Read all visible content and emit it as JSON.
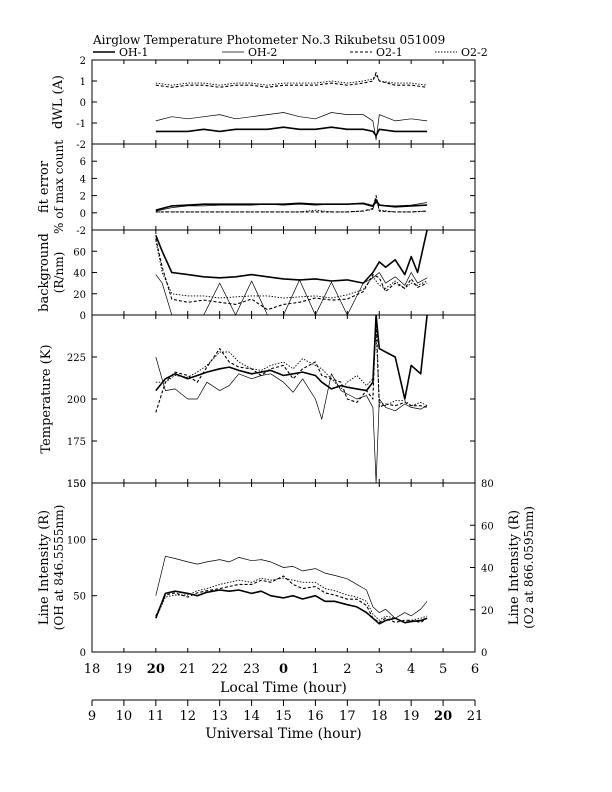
{
  "title": "Airglow Temperature Photometer No.3   Rikubetsu   051009",
  "legend": {
    "items": [
      {
        "label": "OH-1",
        "style": "solid-thick"
      },
      {
        "label": "OH-2",
        "style": "solid-thin"
      },
      {
        "label": "O2-1",
        "style": "dash"
      },
      {
        "label": "O2-2",
        "style": "dot"
      }
    ]
  },
  "x_axis_local": {
    "label": "Local Time (hour)",
    "ticks": [
      "18",
      "19",
      "20",
      "21",
      "22",
      "23",
      "0",
      "1",
      "2",
      "3",
      "4",
      "5",
      "6"
    ],
    "bold": [
      "20",
      "0"
    ]
  },
  "x_axis_ut": {
    "label": "Universal Time (hour)",
    "ticks": [
      "9",
      "10",
      "11",
      "12",
      "13",
      "14",
      "15",
      "16",
      "17",
      "18",
      "19",
      "20",
      "21"
    ],
    "bold": [
      "20"
    ]
  },
  "chart_data": [
    {
      "type": "line",
      "panel": "dWL",
      "ylabel": "dWL (A)",
      "ylim": [
        -2,
        2
      ],
      "yticks": [
        "2",
        "1",
        "0",
        "-1",
        "-2"
      ],
      "x_hours_ut": [
        11.0,
        11.5,
        12.0,
        12.5,
        13.0,
        13.5,
        14.0,
        14.5,
        15.0,
        15.5,
        16.0,
        16.5,
        17.0,
        17.5,
        17.8,
        17.9,
        18.0,
        18.5,
        19.0,
        19.5
      ],
      "series": [
        {
          "name": "OH-1",
          "values": [
            -1.4,
            -1.4,
            -1.4,
            -1.3,
            -1.4,
            -1.3,
            -1.3,
            -1.3,
            -1.2,
            -1.3,
            -1.3,
            -1.2,
            -1.3,
            -1.3,
            -1.4,
            -1.6,
            -1.3,
            -1.4,
            -1.4,
            -1.4
          ]
        },
        {
          "name": "OH-2",
          "values": [
            -0.9,
            -0.7,
            -0.8,
            -0.7,
            -0.6,
            -0.8,
            -0.7,
            -0.6,
            -0.5,
            -0.7,
            -0.8,
            -0.5,
            -0.6,
            -0.6,
            -0.9,
            -1.8,
            -0.6,
            -0.9,
            -0.8,
            -0.9
          ]
        },
        {
          "name": "O2-1",
          "values": [
            0.8,
            0.7,
            0.8,
            0.8,
            0.7,
            0.8,
            0.8,
            0.7,
            0.8,
            0.8,
            0.8,
            0.9,
            0.8,
            0.9,
            1.0,
            1.4,
            1.0,
            0.8,
            0.8,
            0.7
          ]
        },
        {
          "name": "O2-2",
          "values": [
            0.9,
            0.8,
            0.9,
            0.9,
            0.8,
            0.9,
            0.9,
            0.8,
            0.9,
            0.9,
            0.9,
            1.0,
            0.9,
            1.0,
            1.1,
            1.3,
            1.0,
            0.9,
            0.9,
            0.8
          ]
        }
      ]
    },
    {
      "type": "line",
      "panel": "fit-error",
      "ylabel": "fit error",
      "ylabel2": "% of max count",
      "ylim": [
        -2,
        8
      ],
      "yticks": [
        "6",
        "4",
        "2",
        "0",
        "-2"
      ],
      "x_hours_ut": [
        11.0,
        11.5,
        12.0,
        12.5,
        13.0,
        13.5,
        14.0,
        14.5,
        15.0,
        15.5,
        16.0,
        16.5,
        17.0,
        17.5,
        17.8,
        17.9,
        18.0,
        18.5,
        19.0,
        19.5
      ],
      "series": [
        {
          "name": "OH-1",
          "values": [
            0.3,
            0.8,
            0.9,
            1.0,
            1.0,
            1.0,
            1.0,
            1.0,
            1.0,
            1.1,
            1.0,
            1.0,
            1.0,
            1.1,
            0.8,
            1.5,
            0.9,
            0.7,
            0.8,
            0.9
          ]
        },
        {
          "name": "OH-2",
          "values": [
            0.2,
            0.6,
            0.8,
            0.8,
            0.9,
            0.9,
            0.9,
            1.0,
            0.9,
            1.0,
            0.9,
            1.0,
            1.0,
            1.0,
            0.7,
            1.2,
            0.9,
            0.8,
            0.9,
            1.2
          ]
        },
        {
          "name": "O2-1",
          "values": [
            0.1,
            0.1,
            0.1,
            0.1,
            0.1,
            0.1,
            0.1,
            0.1,
            0.1,
            0.1,
            0.1,
            0.1,
            0.1,
            0.2,
            0.5,
            2.0,
            0.2,
            0.1,
            0.1,
            0.2
          ]
        },
        {
          "name": "O2-2",
          "values": [
            0.1,
            0.1,
            0.1,
            0.1,
            0.1,
            0.1,
            0.1,
            0.1,
            0.1,
            0.1,
            0.3,
            0.1,
            0.1,
            0.2,
            0.4,
            1.6,
            0.3,
            0.1,
            0.1,
            0.2
          ]
        }
      ]
    },
    {
      "type": "line",
      "panel": "background",
      "ylabel": "background",
      "ylabel2": "(R/nm)",
      "ylim": [
        0,
        80
      ],
      "yticks": [
        "60",
        "40",
        "20",
        "0"
      ],
      "x_hours_ut": [
        11.0,
        11.2,
        11.5,
        12.0,
        12.5,
        13.0,
        13.5,
        14.0,
        14.5,
        15.0,
        15.5,
        16.0,
        16.5,
        17.0,
        17.5,
        17.8,
        18.0,
        18.2,
        18.5,
        18.8,
        19.0,
        19.2,
        19.5
      ],
      "series": [
        {
          "name": "OH-1",
          "values": [
            75,
            60,
            40,
            38,
            36,
            35,
            36,
            38,
            36,
            34,
            33,
            34,
            32,
            33,
            30,
            40,
            50,
            45,
            52,
            38,
            55,
            40,
            80
          ]
        },
        {
          "name": "OH-2",
          "values": [
            38,
            30,
            0,
            0,
            0,
            30,
            0,
            32,
            0,
            0,
            33,
            0,
            31,
            0,
            30,
            35,
            40,
            30,
            36,
            28,
            40,
            30,
            35
          ]
        },
        {
          "name": "O2-1",
          "values": [
            72,
            45,
            15,
            12,
            14,
            12,
            10,
            15,
            5,
            10,
            12,
            16,
            14,
            15,
            22,
            38,
            35,
            22,
            30,
            25,
            34,
            26,
            30
          ]
        },
        {
          "name": "O2-2",
          "values": [
            70,
            40,
            20,
            18,
            18,
            16,
            17,
            18,
            18,
            16,
            17,
            18,
            16,
            19,
            24,
            36,
            28,
            25,
            32,
            25,
            30,
            28,
            32
          ]
        }
      ]
    },
    {
      "type": "line",
      "panel": "temperature",
      "ylabel": "Temperature (K)",
      "ylim": [
        150,
        250
      ],
      "yticks": [
        "225",
        "200",
        "175",
        "150"
      ],
      "x_hours_ut": [
        11.0,
        11.3,
        11.6,
        12.0,
        12.3,
        12.6,
        13.0,
        13.3,
        13.6,
        14.0,
        14.3,
        14.6,
        15.0,
        15.3,
        15.6,
        16.0,
        16.2,
        16.5,
        16.8,
        17.0,
        17.3,
        17.6,
        17.8,
        17.9,
        18.0,
        18.2,
        18.5,
        18.8,
        19.0,
        19.3,
        19.5
      ],
      "series": [
        {
          "name": "OH-1",
          "values": [
            205,
            212,
            215,
            212,
            214,
            216,
            218,
            219,
            217,
            215,
            216,
            217,
            214,
            215,
            216,
            214,
            210,
            206,
            208,
            207,
            206,
            205,
            210,
            250,
            230,
            228,
            225,
            200,
            220,
            215,
            250
          ]
        },
        {
          "name": "OH-2",
          "values": [
            225,
            205,
            206,
            200,
            200,
            210,
            205,
            208,
            215,
            212,
            214,
            215,
            210,
            204,
            212,
            200,
            188,
            215,
            205,
            203,
            200,
            202,
            195,
            150,
            200,
            195,
            193,
            197,
            195,
            194,
            196
          ]
        },
        {
          "name": "O2-1",
          "values": [
            192,
            210,
            216,
            214,
            210,
            219,
            230,
            222,
            219,
            218,
            214,
            218,
            220,
            212,
            218,
            222,
            214,
            212,
            210,
            200,
            198,
            205,
            200,
            250,
            195,
            197,
            196,
            198,
            196,
            196,
            195
          ]
        },
        {
          "name": "O2-2",
          "values": [
            210,
            210,
            214,
            213,
            216,
            220,
            228,
            228,
            222,
            218,
            217,
            220,
            222,
            218,
            224,
            220,
            218,
            212,
            206,
            210,
            214,
            208,
            212,
            240,
            198,
            196,
            199,
            199,
            196,
            198,
            196
          ]
        }
      ]
    },
    {
      "type": "line",
      "panel": "line-intensity",
      "ylabel": "Line Intensity (R)",
      "ylabel2": "(OH at 846.5555nm)",
      "ylim": [
        0,
        150
      ],
      "yticks": [
        "150",
        "100",
        "50",
        "0"
      ],
      "y2label": "Line Intensity (R)",
      "y2label2": "(O2 at 866.0595nm)",
      "y2lim": [
        0,
        80
      ],
      "y2ticks": [
        "80",
        "60",
        "40",
        "20",
        "0"
      ],
      "x_hours_ut": [
        11.0,
        11.3,
        11.6,
        12.0,
        12.3,
        12.6,
        13.0,
        13.3,
        13.6,
        14.0,
        14.3,
        14.6,
        15.0,
        15.3,
        15.6,
        16.0,
        16.3,
        16.6,
        17.0,
        17.3,
        17.6,
        17.8,
        18.0,
        18.2,
        18.5,
        18.8,
        19.0,
        19.3,
        19.5
      ],
      "series": [
        {
          "name": "OH-1",
          "values": [
            30,
            52,
            54,
            52,
            50,
            53,
            55,
            54,
            55,
            52,
            54,
            50,
            48,
            50,
            47,
            50,
            45,
            45,
            42,
            40,
            35,
            30,
            25,
            28,
            30,
            26,
            27,
            28,
            30
          ]
        },
        {
          "name": "OH-2",
          "values": [
            50,
            85,
            83,
            80,
            78,
            80,
            82,
            80,
            84,
            81,
            82,
            80,
            75,
            76,
            72,
            74,
            70,
            68,
            65,
            60,
            55,
            40,
            35,
            38,
            30,
            35,
            32,
            38,
            45
          ]
        },
        {
          "name": "O2-1",
          "values": [
            17,
            27,
            28,
            26,
            28,
            29,
            30,
            31,
            32,
            32,
            34,
            33,
            36,
            32,
            30,
            31,
            28,
            27,
            25,
            25,
            22,
            16,
            14,
            16,
            14,
            15,
            15,
            14,
            16
          ]
        },
        {
          "name": "O2-2",
          "values": [
            16,
            26,
            27,
            27,
            29,
            30,
            32,
            33,
            34,
            33,
            35,
            34,
            35,
            34,
            33,
            33,
            30,
            29,
            27,
            26,
            24,
            18,
            15,
            17,
            16,
            14,
            15,
            16,
            17
          ]
        }
      ]
    }
  ]
}
